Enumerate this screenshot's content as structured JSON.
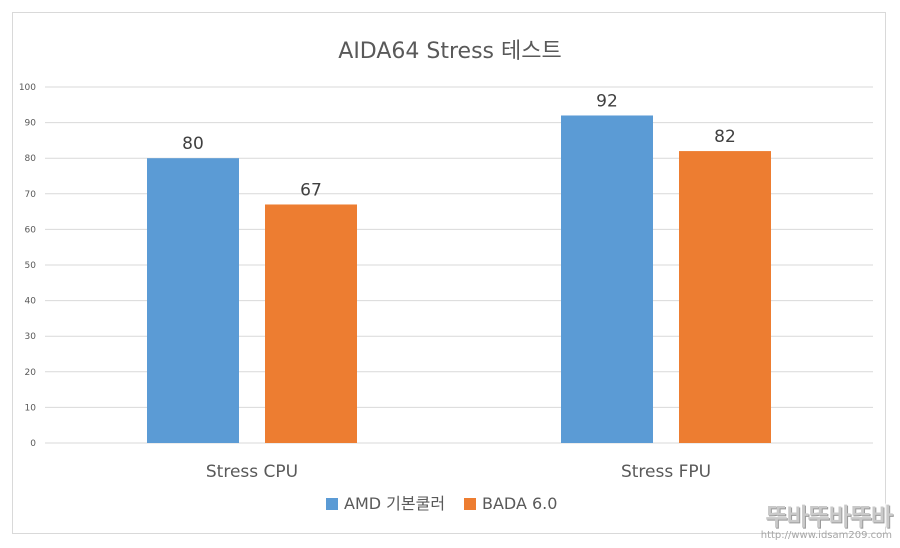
{
  "chart_data": {
    "type": "bar",
    "title": "AIDA64 Stress 테스트",
    "categories": [
      "Stress CPU",
      "Stress FPU"
    ],
    "series": [
      {
        "name": "AMD 기본쿨러",
        "color": "#5b9bd5",
        "values": [
          80,
          92
        ]
      },
      {
        "name": "BADA 6.0",
        "color": "#ed7d31",
        "values": [
          67,
          82
        ]
      }
    ],
    "ylim": [
      0,
      100
    ],
    "yticks": [
      0,
      10,
      20,
      30,
      40,
      50,
      60,
      70,
      80,
      90,
      100
    ],
    "grid": true,
    "legend_position": "bottom",
    "xlabel": "",
    "ylabel": ""
  },
  "watermark": {
    "logo": "뚜바뚜바뚜바",
    "url": "http://www.idsam209.com"
  }
}
